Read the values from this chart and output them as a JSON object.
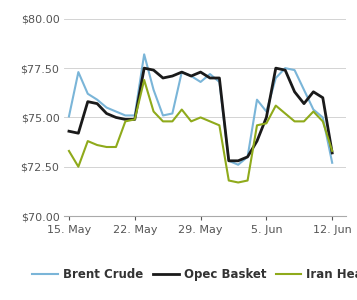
{
  "title": "",
  "xlabel": "",
  "ylabel": "",
  "ylim": [
    70.0,
    80.5
  ],
  "yticks": [
    70.0,
    72.5,
    75.0,
    77.5,
    80.0
  ],
  "ytick_labels": [
    "$70.00",
    "$72.50",
    "$75.00",
    "$77.50",
    "$80.00"
  ],
  "x_labels": [
    "15. May",
    "22. May",
    "29. May",
    "5. Jun",
    "12. Jun"
  ],
  "x_positions": [
    0,
    7,
    14,
    21,
    28
  ],
  "brent_crude": {
    "x": [
      0,
      1,
      2,
      3,
      4,
      5,
      6,
      7,
      8,
      9,
      10,
      11,
      12,
      13,
      14,
      15,
      16,
      17,
      18,
      19,
      20,
      21,
      22,
      23,
      24,
      25,
      26,
      27,
      28
    ],
    "y": [
      75.05,
      77.3,
      76.2,
      75.9,
      75.5,
      75.3,
      75.1,
      75.1,
      78.2,
      76.4,
      75.1,
      75.2,
      77.3,
      77.1,
      76.8,
      77.2,
      76.8,
      72.8,
      72.6,
      73.0,
      75.9,
      75.3,
      77.0,
      77.5,
      77.4,
      76.4,
      75.4,
      75.0,
      72.7
    ],
    "color": "#7ab5d8",
    "label": "Brent Crude",
    "linewidth": 1.5
  },
  "opec_basket": {
    "x": [
      0,
      1,
      2,
      3,
      4,
      5,
      6,
      7,
      8,
      9,
      10,
      11,
      12,
      13,
      14,
      15,
      16,
      17,
      18,
      19,
      20,
      21,
      22,
      23,
      24,
      25,
      26,
      27,
      28
    ],
    "y": [
      74.3,
      74.2,
      75.8,
      75.7,
      75.2,
      75.0,
      74.9,
      74.9,
      77.5,
      77.4,
      77.0,
      77.1,
      77.3,
      77.1,
      77.3,
      77.0,
      77.0,
      72.8,
      72.8,
      73.0,
      73.8,
      75.0,
      77.5,
      77.4,
      76.3,
      75.7,
      76.3,
      76.0,
      73.2
    ],
    "color": "#1a1a1a",
    "label": "Opec Basket",
    "linewidth": 2.0
  },
  "iran_heavy": {
    "x": [
      0,
      1,
      2,
      3,
      4,
      5,
      6,
      7,
      8,
      9,
      10,
      11,
      12,
      13,
      14,
      15,
      16,
      17,
      18,
      19,
      20,
      21,
      22,
      23,
      24,
      25,
      26,
      27,
      28
    ],
    "y": [
      73.3,
      72.5,
      73.8,
      73.6,
      73.5,
      73.5,
      74.8,
      74.9,
      76.9,
      75.3,
      74.8,
      74.8,
      75.4,
      74.8,
      75.0,
      74.8,
      74.6,
      71.8,
      71.7,
      71.8,
      74.6,
      74.7,
      75.6,
      75.2,
      74.8,
      74.8,
      75.3,
      74.8,
      73.3
    ],
    "color": "#8faa1b",
    "label": "Iran Heavy",
    "linewidth": 1.5
  },
  "background_color": "#ffffff",
  "grid_color": "#cccccc",
  "tick_color": "#555555",
  "legend_fontsize": 8.5,
  "tick_fontsize": 8.0
}
